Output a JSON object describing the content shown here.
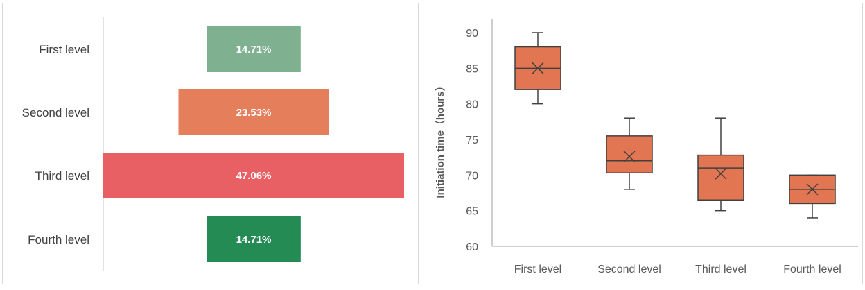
{
  "chart_data": [
    {
      "type": "bar",
      "orientation": "horizontal-centered",
      "categories": [
        "First level",
        "Second level",
        "Third level",
        "Fourth level"
      ],
      "values": [
        14.71,
        23.53,
        47.06,
        14.71
      ],
      "value_labels": [
        "14.71%",
        "23.53%",
        "47.06%",
        "14.71%"
      ],
      "colors": [
        "#7fb08f",
        "#e57e5b",
        "#e86063",
        "#248b55"
      ],
      "title": "",
      "xlabel": "",
      "ylabel": ""
    },
    {
      "type": "box",
      "categories": [
        "First level",
        "Second level",
        "Third level",
        "Fourth level"
      ],
      "boxes": [
        {
          "min": 80,
          "q1": 82,
          "median": 85,
          "q3": 88,
          "max": 90,
          "mean": 85
        },
        {
          "min": 68,
          "q1": 70.3,
          "median": 72,
          "q3": 75.5,
          "max": 78,
          "mean": 72.6
        },
        {
          "min": 65,
          "q1": 66.5,
          "median": 71,
          "q3": 72.8,
          "max": 78,
          "mean": 70.2
        },
        {
          "min": 64,
          "q1": 66,
          "median": 68,
          "q3": 70,
          "max": 70,
          "mean": 68
        }
      ],
      "ylabel": "Initiation time（hours）",
      "xlabel": "",
      "ylim": [
        60,
        90
      ],
      "yticks": [
        "60",
        "65",
        "70",
        "75",
        "80",
        "85",
        "90"
      ],
      "box_color": "#e27552",
      "grid": false
    }
  ]
}
